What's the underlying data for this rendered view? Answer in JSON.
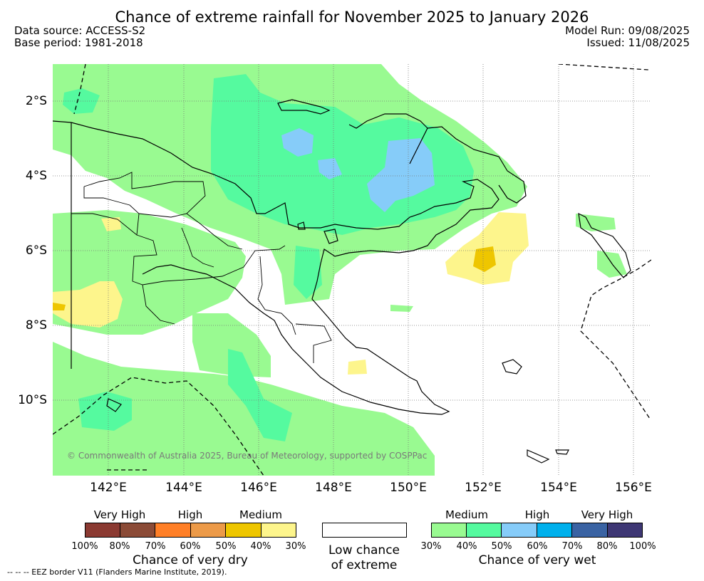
{
  "title": "Chance of extreme rainfall for November 2025 to January 2026",
  "meta_left": {
    "source": "Data source: ACCESS-S2",
    "base": "Base period: 1981-2018"
  },
  "meta_right": {
    "run": "Model Run: 09/08/2025",
    "issued": "Issued: 11/08/2025"
  },
  "axes": {
    "y_labels": [
      "2°S",
      "4°S",
      "6°S",
      "8°S",
      "10°S"
    ],
    "x_labels": [
      "142°E",
      "144°E",
      "146°E",
      "148°E",
      "150°E",
      "152°E",
      "154°E",
      "156°E"
    ]
  },
  "copyright": "© Commonwealth of Australia 2025, Bureau of Meteorology, supported by COSPPac",
  "legend": {
    "dry": {
      "levels": [
        "Very High",
        "High",
        "Medium"
      ],
      "colors": [
        "#8b3a32",
        "#8b4b37",
        "#ff7f27",
        "#ec9a48",
        "#eec600",
        "#fdf58c"
      ],
      "ticks": [
        "100%",
        "80%",
        "70%",
        "60%",
        "50%",
        "40%",
        "30%"
      ],
      "caption": "Chance of very dry"
    },
    "low": {
      "line1": "Low chance",
      "line2": "of extreme"
    },
    "wet": {
      "levels": [
        "Medium",
        "High",
        "Very High"
      ],
      "colors": [
        "#99fa91",
        "#55fa9f",
        "#86ccf9",
        "#00b0ec",
        "#3a63a3",
        "#3e3774"
      ],
      "ticks": [
        "30%",
        "40%",
        "50%",
        "60%",
        "70%",
        "80%",
        "100%"
      ],
      "caption": "Chance of very wet"
    }
  },
  "eez_note": "-- -- -- EEZ border V11 (Flanders Marine Institute, 2019)."
}
